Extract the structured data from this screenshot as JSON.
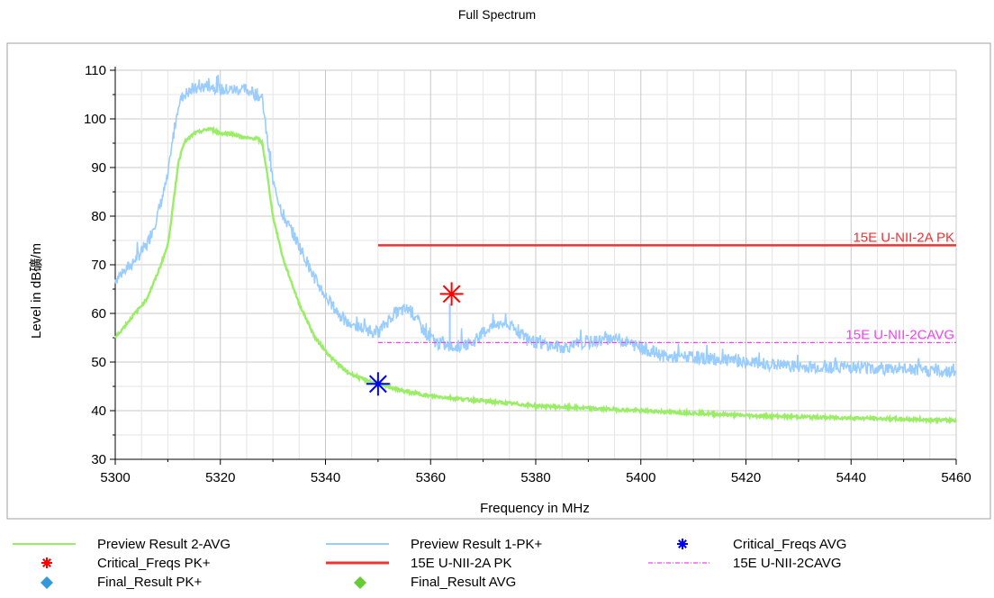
{
  "chart_data": {
    "type": "line",
    "title": "Full Spectrum",
    "xlabel": "Frequency in MHz",
    "ylabel": "Level in dB礦/m",
    "xlim": [
      5300,
      5460
    ],
    "ylim": [
      30,
      110
    ],
    "xticks": [
      "5300",
      "5320",
      "5340",
      "5360",
      "5380",
      "5400",
      "5420",
      "5440",
      "5460"
    ],
    "yticks": [
      "30",
      "40",
      "50",
      "60",
      "70",
      "80",
      "90",
      "100",
      "110"
    ],
    "grid": true,
    "series": [
      {
        "name": "Preview Result 1-PK+",
        "color": "#99ccff",
        "x": [
          5300,
          5303,
          5306,
          5308,
          5310,
          5311,
          5312,
          5313,
          5315,
          5318,
          5320,
          5322,
          5325,
          5327,
          5328,
          5329,
          5330,
          5332,
          5335,
          5338,
          5341,
          5344,
          5347,
          5350,
          5353,
          5356,
          5359,
          5361,
          5364,
          5368,
          5371,
          5374,
          5377,
          5380,
          5385,
          5390,
          5395,
          5400,
          5405,
          5410,
          5420,
          5430,
          5440,
          5450,
          5460
        ],
        "y": [
          67,
          70,
          74,
          80,
          88,
          96,
          103,
          105,
          106,
          107,
          106,
          106,
          106,
          105,
          104,
          95,
          87,
          80,
          74,
          67,
          62,
          58,
          57,
          56,
          60,
          61,
          56,
          54,
          53,
          54,
          57,
          58,
          56,
          54,
          53,
          54,
          55,
          53,
          51,
          51,
          50,
          49,
          49,
          48.5,
          48
        ]
      },
      {
        "name": "Preview Result 2-AVG",
        "color": "#99ee66",
        "x": [
          5300,
          5303,
          5306,
          5308,
          5310,
          5311,
          5312,
          5313,
          5315,
          5318,
          5320,
          5322,
          5325,
          5327,
          5328,
          5329,
          5330,
          5332,
          5335,
          5338,
          5341,
          5344,
          5347,
          5350,
          5355,
          5360,
          5370,
          5380,
          5390,
          5400,
          5420,
          5440,
          5460
        ],
        "y": [
          55,
          59,
          63,
          68,
          74,
          82,
          91,
          95,
          97,
          98,
          97,
          97,
          96,
          96,
          95,
          88,
          80,
          71,
          62,
          55,
          51,
          48,
          46.5,
          45.5,
          44,
          43,
          42,
          41,
          40.5,
          40,
          39,
          38.5,
          38
        ]
      },
      {
        "name": "15E U-NII-2A PK",
        "color": "#ee3333",
        "x": [
          5350,
          5460
        ],
        "y": [
          74,
          74
        ],
        "label": "15E U-NII-2A PK"
      },
      {
        "name": "15E U-NII-2CAVG",
        "color": "#ee44ee",
        "x": [
          5350,
          5460
        ],
        "y": [
          54,
          54
        ],
        "label": "15E U-NII-2CAVG"
      }
    ],
    "markers": [
      {
        "name": "Critical_Freqs PK+",
        "x": 5364,
        "y": 64,
        "color": "#ff0000"
      },
      {
        "name": "Critical_Freqs AVG",
        "x": 5350,
        "y": 45.5,
        "color": "#0000ff"
      }
    ],
    "legend": {
      "placement": "bottom",
      "items": [
        {
          "label": "Preview Result 2-AVG",
          "symbol": "line",
          "color": "#99ee66"
        },
        {
          "label": "Preview Result 1-PK+",
          "symbol": "line",
          "color": "#99ccff"
        },
        {
          "label": "Critical_Freqs AVG",
          "symbol": "star",
          "color": "#0000ff"
        },
        {
          "label": "Critical_Freqs PK+",
          "symbol": "star",
          "color": "#ff0000"
        },
        {
          "label": "15E U-NII-2A PK",
          "symbol": "line",
          "color": "#ee3333"
        },
        {
          "label": "15E U-NII-2CAVG",
          "symbol": "dashdot",
          "color": "#ee44ee"
        },
        {
          "label": "Final_Result PK+",
          "symbol": "diamond",
          "color": "#3399dd"
        },
        {
          "label": "Final_Result AVG",
          "symbol": "diamond",
          "color": "#66cc33"
        }
      ]
    }
  }
}
